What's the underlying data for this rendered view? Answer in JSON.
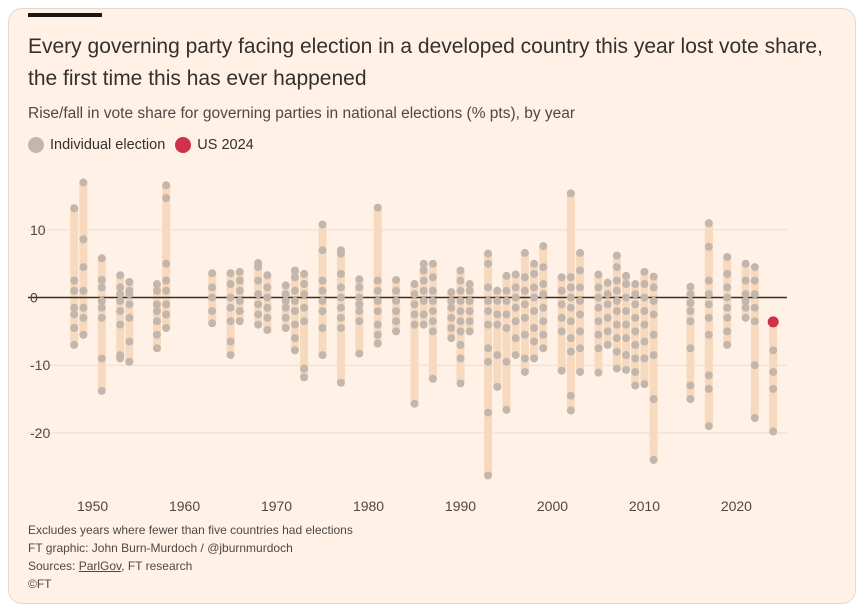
{
  "title": "Every governing party facing election in a developed country this year lost vote share, the first time this has ever happened",
  "subtitle": "Rise/fall in vote share for governing parties in national elections (% pts), by year",
  "legend": {
    "individual": "Individual election",
    "us": "US 2024"
  },
  "colors": {
    "background": "#fff1e5",
    "dot": "#c2b6ad",
    "range_bar": "#f7d9bd",
    "highlight": "#d0304a",
    "zero_line": "#33302e",
    "grid": "#e9ddd2"
  },
  "footer": {
    "note": "Excludes years where fewer than five countries had elections",
    "credit": "FT graphic: John Burn-Murdoch / @jburnmurdoch",
    "sources_prefix": "Sources: ",
    "sources_link": "ParlGov",
    "sources_suffix": ", FT research",
    "copyright": "©FT"
  },
  "chart_data": {
    "type": "scatter",
    "xlim": [
      1947,
      2025.5
    ],
    "ylim": [
      -28,
      19
    ],
    "x_ticks": [
      1950,
      1960,
      1970,
      1980,
      1990,
      2000,
      2010,
      2020
    ],
    "y_ticks": [
      10,
      0,
      -10,
      -20
    ],
    "y_tick_labels": [
      "10",
      "0",
      "-10",
      "-20"
    ],
    "grid": "horizontal",
    "highlight": {
      "name": "US 2024",
      "year": 2024,
      "value": -3.6
    },
    "series": [
      {
        "year": 1948,
        "values": [
          13.2,
          2.5,
          1.0,
          -1.5,
          -2.5,
          -4.5,
          -7.0
        ]
      },
      {
        "year": 1949,
        "values": [
          17.0,
          8.6,
          4.5,
          1.0,
          -1.5,
          -3.0,
          -5.5
        ]
      },
      {
        "year": 1951,
        "values": [
          5.8,
          2.6,
          1.5,
          -0.5,
          -1.5,
          -3.0,
          -9.0,
          -13.8
        ]
      },
      {
        "year": 1953,
        "values": [
          3.3,
          1.5,
          0.5,
          -0.5,
          -2.0,
          -4.0,
          -8.5,
          -9.0
        ]
      },
      {
        "year": 1954,
        "values": [
          2.3,
          1.0,
          0.5,
          -1.0,
          -3.0,
          -6.5,
          -9.5
        ]
      },
      {
        "year": 1957,
        "values": [
          2.0,
          1.0,
          -1.0,
          -2.0,
          -3.5,
          -5.5,
          -7.5
        ]
      },
      {
        "year": 1958,
        "values": [
          16.6,
          14.7,
          5.0,
          2.5,
          1.0,
          -1.0,
          -2.5,
          -4.5
        ]
      },
      {
        "year": 1963,
        "values": [
          3.6,
          1.5,
          0.0,
          -2.0,
          -3.8
        ]
      },
      {
        "year": 1965,
        "values": [
          3.6,
          2.0,
          0.0,
          -1.5,
          -3.5,
          -6.5,
          -8.5
        ]
      },
      {
        "year": 1966,
        "values": [
          3.8,
          2.5,
          1.0,
          -0.5,
          -2.0,
          -3.5
        ]
      },
      {
        "year": 1968,
        "values": [
          5.1,
          4.5,
          2.5,
          0.5,
          -1.0,
          -2.5,
          -4.0
        ]
      },
      {
        "year": 1969,
        "values": [
          3.3,
          1.5,
          0.0,
          -1.5,
          -3.0,
          -4.8
        ]
      },
      {
        "year": 1971,
        "values": [
          1.8,
          0.5,
          -0.5,
          -1.5,
          -3.0,
          -4.5
        ]
      },
      {
        "year": 1972,
        "values": [
          4.0,
          3.0,
          1.0,
          -0.5,
          -2.0,
          -4.0,
          -6.0,
          -7.8
        ]
      },
      {
        "year": 1973,
        "values": [
          3.5,
          2.0,
          0.5,
          -1.5,
          -3.5,
          -10.5,
          -11.8
        ]
      },
      {
        "year": 1975,
        "values": [
          10.8,
          7.0,
          2.5,
          1.0,
          -0.5,
          -2.0,
          -4.5,
          -8.5
        ]
      },
      {
        "year": 1977,
        "values": [
          7.0,
          6.5,
          3.5,
          1.5,
          0.0,
          -1.5,
          -3.0,
          -4.5,
          -12.6
        ]
      },
      {
        "year": 1979,
        "values": [
          2.7,
          1.5,
          0.0,
          -1.0,
          -2.0,
          -3.5,
          -8.3
        ]
      },
      {
        "year": 1981,
        "values": [
          13.3,
          2.5,
          1.0,
          -0.5,
          -2.0,
          -4.0,
          -5.5,
          -6.8
        ]
      },
      {
        "year": 1983,
        "values": [
          2.6,
          1.0,
          -0.5,
          -2.0,
          -3.5,
          -5.0
        ]
      },
      {
        "year": 1985,
        "values": [
          2.0,
          0.5,
          -1.0,
          -2.5,
          -4.0,
          -15.7
        ]
      },
      {
        "year": 1986,
        "values": [
          5.0,
          4.0,
          2.5,
          1.0,
          -0.5,
          -2.5,
          -4.0
        ]
      },
      {
        "year": 1987,
        "values": [
          5.0,
          3.0,
          1.0,
          -0.5,
          -2.0,
          -3.5,
          -5.0,
          -12.0
        ]
      },
      {
        "year": 1989,
        "values": [
          0.8,
          -0.5,
          -1.5,
          -3.0,
          -4.5,
          -6.0
        ]
      },
      {
        "year": 1990,
        "values": [
          4.0,
          2.5,
          1.0,
          -0.5,
          -2.0,
          -3.5,
          -5.0,
          -7.0,
          -9.0,
          -12.7
        ]
      },
      {
        "year": 1991,
        "values": [
          2.0,
          1.0,
          -0.5,
          -2.0,
          -3.5,
          -5.0
        ]
      },
      {
        "year": 1993,
        "values": [
          6.5,
          5.0,
          1.5,
          -0.5,
          -2.0,
          -4.0,
          -7.5,
          -9.5,
          -17.0,
          -26.3
        ]
      },
      {
        "year": 1994,
        "values": [
          1.0,
          -0.5,
          -2.5,
          -4.0,
          -8.5,
          -13.2
        ]
      },
      {
        "year": 1995,
        "values": [
          3.2,
          1.0,
          -0.5,
          -2.5,
          -4.5,
          -9.5,
          -16.6
        ]
      },
      {
        "year": 1996,
        "values": [
          3.4,
          1.5,
          0.0,
          -1.5,
          -3.5,
          -6.0,
          -8.5
        ]
      },
      {
        "year": 1997,
        "values": [
          6.6,
          3.0,
          1.0,
          -1.0,
          -3.0,
          -5.5,
          -9.0,
          -11.0
        ]
      },
      {
        "year": 1998,
        "values": [
          5.0,
          3.5,
          1.5,
          0.0,
          -2.0,
          -4.5,
          -6.5,
          -9.0
        ]
      },
      {
        "year": 1999,
        "values": [
          7.6,
          4.5,
          2.0,
          0.5,
          -1.5,
          -3.5,
          -5.5,
          -7.5
        ]
      },
      {
        "year": 2001,
        "values": [
          3.0,
          1.0,
          -1.0,
          -3.0,
          -5.0,
          -10.8
        ]
      },
      {
        "year": 2002,
        "values": [
          15.4,
          3.0,
          1.5,
          0.0,
          -1.5,
          -3.5,
          -6.0,
          -8.0,
          -14.5,
          -16.7
        ]
      },
      {
        "year": 2003,
        "values": [
          6.6,
          4.0,
          1.5,
          -0.5,
          -2.5,
          -5.0,
          -7.5,
          -11.0
        ]
      },
      {
        "year": 2005,
        "values": [
          3.4,
          1.5,
          0.0,
          -1.5,
          -3.5,
          -5.5,
          -7.5,
          -11.1
        ]
      },
      {
        "year": 2006,
        "values": [
          2.2,
          0.5,
          -1.0,
          -3.0,
          -5.0,
          -7.0
        ]
      },
      {
        "year": 2007,
        "values": [
          6.2,
          4.5,
          2.5,
          1.0,
          -0.5,
          -2.0,
          -4.0,
          -6.0,
          -8.0,
          -10.5
        ]
      },
      {
        "year": 2008,
        "values": [
          3.2,
          2.0,
          0.0,
          -2.0,
          -4.0,
          -6.0,
          -8.5,
          -10.7
        ]
      },
      {
        "year": 2009,
        "values": [
          2.0,
          0.5,
          -1.0,
          -3.0,
          -5.0,
          -7.0,
          -9.0,
          -11.0,
          -13.0
        ]
      },
      {
        "year": 2010,
        "values": [
          3.8,
          2.0,
          0.0,
          -2.0,
          -4.0,
          -6.5,
          -9.0,
          -12.8
        ]
      },
      {
        "year": 2011,
        "values": [
          3.1,
          1.5,
          -0.5,
          -2.5,
          -5.5,
          -8.5,
          -15.0,
          -24.0
        ]
      },
      {
        "year": 2015,
        "values": [
          1.6,
          0.5,
          -0.8,
          -2.0,
          -3.5,
          -7.5,
          -13.0,
          -15.0
        ]
      },
      {
        "year": 2017,
        "values": [
          11.0,
          7.5,
          2.5,
          0.5,
          -1.0,
          -3.0,
          -5.5,
          -11.5,
          -13.5,
          -19.0
        ]
      },
      {
        "year": 2019,
        "values": [
          6.0,
          3.5,
          1.5,
          0.0,
          -1.5,
          -3.0,
          -5.0,
          -7.0
        ]
      },
      {
        "year": 2021,
        "values": [
          5.0,
          2.5,
          0.5,
          -0.5,
          -1.5,
          -3.0
        ]
      },
      {
        "year": 2022,
        "values": [
          4.5,
          2.5,
          0.5,
          -1.5,
          -3.5,
          -10.0,
          -17.8
        ]
      },
      {
        "year": 2024,
        "values": [
          -3.6,
          -7.8,
          -11.0,
          -13.5,
          -19.8
        ]
      }
    ]
  }
}
